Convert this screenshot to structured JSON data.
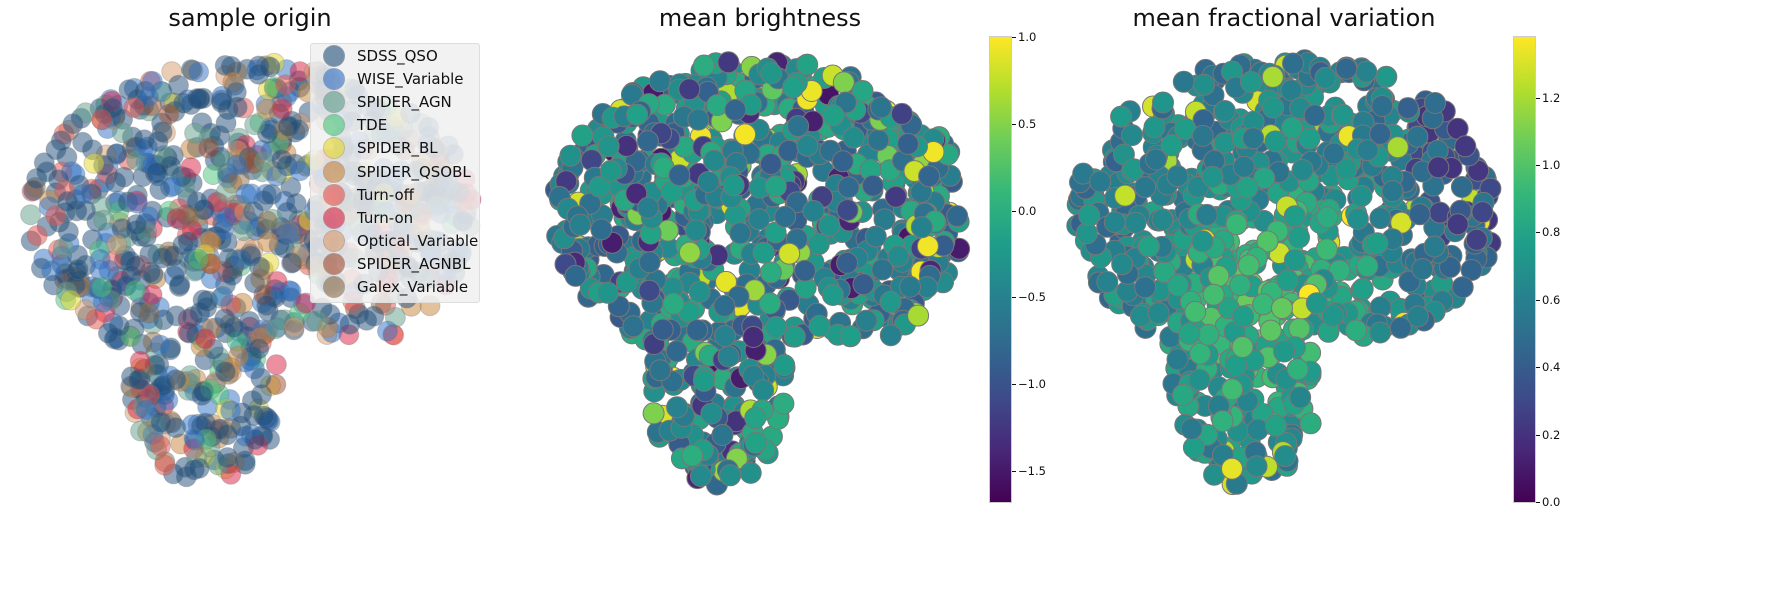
{
  "chart_data": [
    {
      "type": "scatter",
      "title": "sample origin",
      "legend_position": "top-right",
      "grid": false,
      "axes_visible": false,
      "legend": [
        {
          "name": "SDSS_QSO",
          "color": "#1f4e79"
        },
        {
          "name": "WISE_Variable",
          "color": "#2e6fc4"
        },
        {
          "name": "SPIDER_AGN",
          "color": "#5f9e8a"
        },
        {
          "name": "TDE",
          "color": "#47c47a"
        },
        {
          "name": "SPIDER_BL",
          "color": "#e6d82a"
        },
        {
          "name": "SPIDER_QSOBL",
          "color": "#c8833a"
        },
        {
          "name": "Turn-off",
          "color": "#e8504a"
        },
        {
          "name": "Turn-on",
          "color": "#d81f44"
        },
        {
          "name": "Optical_Variable",
          "color": "#d89a6a"
        },
        {
          "name": "SPIDER_AGNBL",
          "color": "#a04a2e"
        },
        {
          "name": "Galex_Variable",
          "color": "#8a6a45"
        }
      ]
    },
    {
      "type": "scatter",
      "title": "mean brightness",
      "colormap": "viridis",
      "grid": false,
      "axes_visible": false,
      "colorbar": {
        "range": [
          -1.68,
          1.0
        ],
        "ticks": [
          "1.0",
          "0.5",
          "0.0",
          "−0.5",
          "−1.0",
          "−1.5"
        ],
        "tick_values": [
          1.0,
          0.5,
          0.0,
          -0.5,
          -1.0,
          -1.5
        ]
      }
    },
    {
      "type": "scatter",
      "title": "mean fractional variation",
      "colormap": "viridis",
      "grid": false,
      "axes_visible": false,
      "colorbar": {
        "range": [
          0.0,
          1.38
        ],
        "ticks": [
          "1.2",
          "1.0",
          "0.8",
          "0.6",
          "0.4",
          "0.2",
          "0.0"
        ],
        "tick_values": [
          1.2,
          1.0,
          0.8,
          0.6,
          0.4,
          0.2,
          0.0
        ]
      }
    }
  ]
}
